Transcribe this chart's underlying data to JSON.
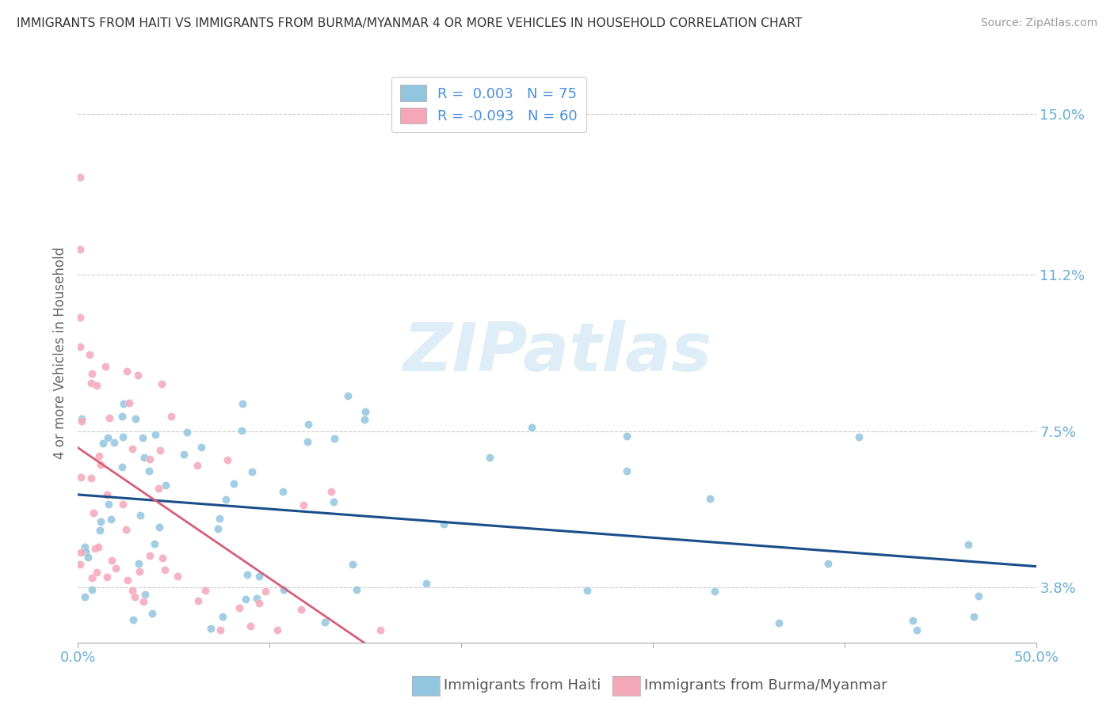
{
  "title": "IMMIGRANTS FROM HAITI VS IMMIGRANTS FROM BURMA/MYANMAR 4 OR MORE VEHICLES IN HOUSEHOLD CORRELATION CHART",
  "source": "Source: ZipAtlas.com",
  "xlabel_haiti": "Immigrants from Haiti",
  "xlabel_burma": "Immigrants from Burma/Myanmar",
  "ylabel": "4 or more Vehicles in Household",
  "xlim": [
    0.0,
    50.0
  ],
  "ylim_min": 2.5,
  "ylim_max": 16.2,
  "ytick_vals": [
    3.8,
    7.5,
    11.2,
    15.0
  ],
  "R_haiti": 0.003,
  "N_haiti": 75,
  "R_burma": -0.093,
  "N_burma": 60,
  "color_haiti": "#92c5de",
  "color_burma": "#f4a7b9",
  "trendline_haiti_color": "#1a4e8a",
  "trendline_burma_solid_color": "#d45f7a",
  "trendline_burma_dash_color": "#d45f7a",
  "watermark_text": "ZIPatlas",
  "watermark_color": "#c5dff0",
  "background_color": "#ffffff",
  "grid_color": "#cccccc",
  "tick_color": "#6aaed6",
  "ylabel_color": "#666666",
  "title_color": "#333333",
  "source_color": "#999999",
  "legend_text_color": "#4a90d9"
}
